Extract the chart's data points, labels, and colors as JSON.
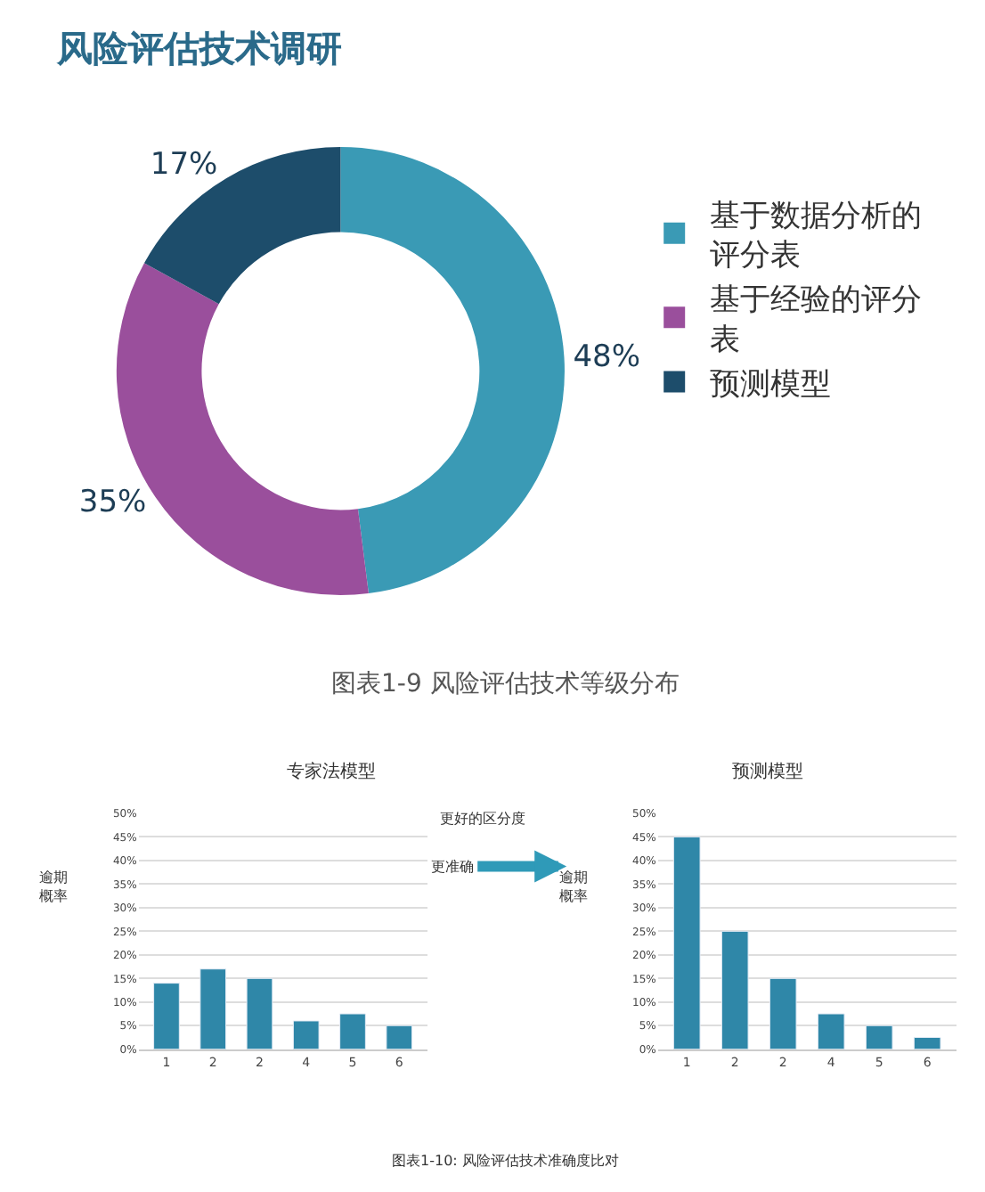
{
  "chart_data": [
    {
      "type": "donut",
      "title": "风险评估技术调研",
      "categories": [
        "基于数据分析的评分表",
        "基于经验的评分表",
        "预测模型"
      ],
      "values": [
        48,
        35,
        17
      ],
      "colors": [
        "#3a9ab5",
        "#9a4f9c",
        "#1d4d6b"
      ],
      "value_labels": [
        "48%",
        "35%",
        "17%"
      ],
      "legend": "right",
      "annotations": [
        "图表1-9 风险评估技术等级分布"
      ]
    },
    {
      "type": "bar",
      "title": "专家法模型",
      "ylabel": "逾期概率",
      "categories": [
        "1",
        "2",
        "2",
        "4",
        "5",
        "6"
      ],
      "values": [
        14,
        17,
        15,
        6,
        7.5,
        5
      ],
      "color": "#2f87a8",
      "ylim": [
        0,
        50
      ],
      "yticks": [
        {
          "value": 0,
          "label": "0%"
        },
        {
          "value": 5,
          "label": "5%"
        },
        {
          "value": 10,
          "label": "10%"
        },
        {
          "value": 15,
          "label": "15%"
        },
        {
          "value": 20,
          "label": "20%"
        },
        {
          "value": 25,
          "label": "25%"
        },
        {
          "value": 30,
          "label": "30%"
        },
        {
          "value": 35,
          "label": "35%"
        },
        {
          "value": 40,
          "label": "40%"
        },
        {
          "value": 45,
          "label": "45%"
        },
        {
          "value": 50,
          "label": "50%"
        }
      ],
      "grid": "y",
      "annotations": [
        "更好的区分度",
        "更准确",
        "图表1-10: 风险评估技术准确度比对"
      ]
    },
    {
      "type": "bar",
      "title": "预测模型",
      "ylabel": "逾期概率",
      "categories": [
        "1",
        "2",
        "2",
        "4",
        "5",
        "6"
      ],
      "values": [
        45,
        25,
        15,
        7.5,
        5,
        2.5
      ],
      "color": "#2f87a8",
      "ylim": [
        0,
        50
      ],
      "yticks": [
        {
          "value": 0,
          "label": "0%"
        },
        {
          "value": 5,
          "label": "5%"
        },
        {
          "value": 10,
          "label": "10%"
        },
        {
          "value": 15,
          "label": "15%"
        },
        {
          "value": 20,
          "label": "20%"
        },
        {
          "value": 25,
          "label": "25%"
        },
        {
          "value": 30,
          "label": "30%"
        },
        {
          "value": 35,
          "label": "35%"
        },
        {
          "value": 40,
          "label": "40%"
        },
        {
          "value": 45,
          "label": "45%"
        },
        {
          "value": 50,
          "label": "50%"
        }
      ],
      "grid": "y"
    }
  ]
}
